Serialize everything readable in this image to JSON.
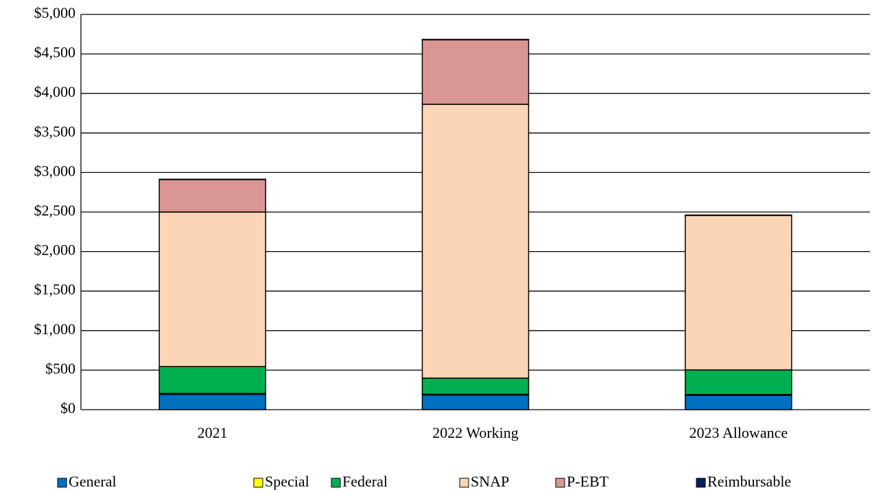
{
  "chart_data": {
    "type": "stacked_bar",
    "categories": [
      "2021",
      "2022 Working",
      "2023 Allowance"
    ],
    "series": [
      {
        "name": "General",
        "color": "#0070c0",
        "values": [
          195,
          185,
          182
        ]
      },
      {
        "name": "Special",
        "color": "#ffff00",
        "values": [
          10,
          10,
          10
        ]
      },
      {
        "name": "Federal",
        "color": "#00b050",
        "values": [
          340,
          204,
          311
        ]
      },
      {
        "name": "SNAP",
        "color": "#fbd5b5",
        "values": [
          1955,
          3464,
          1954
        ]
      },
      {
        "name": "P-EBT",
        "color": "#d99694",
        "values": [
          410,
          816,
          0
        ]
      },
      {
        "name": "Reimbursable",
        "color": "#002060",
        "values": [
          5,
          5,
          5
        ]
      }
    ],
    "ylim": [
      0,
      5000
    ],
    "yticks": [
      {
        "value": 0,
        "label": "$0"
      },
      {
        "value": 500,
        "label": "$500"
      },
      {
        "value": 1000,
        "label": "$1,000"
      },
      {
        "value": 1500,
        "label": "$1,500"
      },
      {
        "value": 2000,
        "label": "$2,000"
      },
      {
        "value": 2500,
        "label": "$2,500"
      },
      {
        "value": 3000,
        "label": "$3,000"
      },
      {
        "value": 3500,
        "label": "$3,500"
      },
      {
        "value": 4000,
        "label": "$4,000"
      },
      {
        "value": 4500,
        "label": "$4,500"
      },
      {
        "value": 5000,
        "label": "$5,000"
      }
    ],
    "grid": true,
    "legend": "bottom"
  }
}
